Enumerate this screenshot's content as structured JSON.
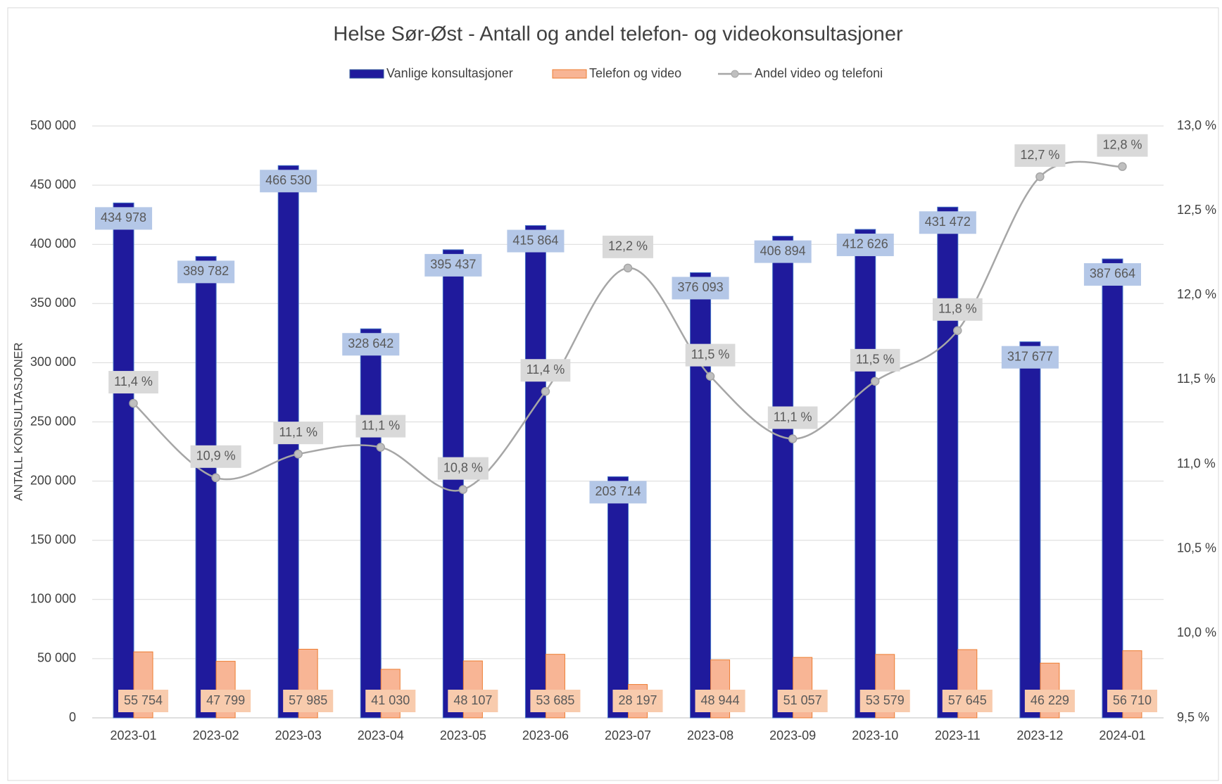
{
  "chart_data": {
    "type": "bar-line",
    "title": "Helse Sør-Øst - Antall og andel telefon- og videokonsultasjoner",
    "y_label": "ANTALL KONSULTASJONER",
    "categories": [
      "2023-01",
      "2023-02",
      "2023-03",
      "2023-04",
      "2023-05",
      "2023-06",
      "2023-07",
      "2023-08",
      "2023-09",
      "2023-10",
      "2023-11",
      "2023-12",
      "2024-01"
    ],
    "series": [
      {
        "name": "Vanlige konsultasjoner",
        "type": "bar",
        "color": "#1f1a9c",
        "label_color": "#b4c7e7",
        "values": [
          434978,
          389782,
          466530,
          328642,
          395437,
          415864,
          203714,
          376093,
          406894,
          412626,
          431472,
          317677,
          387664
        ],
        "value_labels": [
          "434 978",
          "389 782",
          "466 530",
          "328 642",
          "395 437",
          "415 864",
          "203 714",
          "376 093",
          "406 894",
          "412 626",
          "431 472",
          "317 677",
          "387 664"
        ]
      },
      {
        "name": "Telefon og video",
        "type": "bar",
        "color": "#f8b595",
        "label_color": "#f8cbad",
        "values": [
          55754,
          47799,
          57985,
          41030,
          48107,
          53685,
          28197,
          48944,
          51057,
          53579,
          57645,
          46229,
          56710
        ],
        "value_labels": [
          "55 754",
          "47 799",
          "57 985",
          "41 030",
          "48 107",
          "53 685",
          "28 197",
          "48 944",
          "51 057",
          "53 579",
          "57 645",
          "46 229",
          "56 710"
        ]
      },
      {
        "name": "Andel video og telefoni",
        "type": "line",
        "axis": "y2",
        "color": "#a6a6a6",
        "label_color": "#d9d9d9",
        "values": [
          11.36,
          10.92,
          11.06,
          11.1,
          10.85,
          11.43,
          12.16,
          11.52,
          11.15,
          11.49,
          11.79,
          12.7,
          12.76
        ],
        "value_labels": [
          "11,4 %",
          "10,9 %",
          "11,1 %",
          "11,1 %",
          "10,8 %",
          "11,4 %",
          "12,2 %",
          "11,5 %",
          "11,1 %",
          "11,5 %",
          "11,8 %",
          "12,7 %",
          "12,8 %"
        ]
      }
    ],
    "ylim": [
      0,
      500000
    ],
    "yticks": [
      0,
      {
        "value": 50000,
        "label": "50 000"
      },
      {
        "value": 100000,
        "label": "100 000"
      },
      {
        "value": 150000,
        "label": "150 000"
      },
      {
        "value": 200000,
        "label": "200 000"
      },
      {
        "value": 250000,
        "label": "250 000"
      },
      {
        "value": 300000,
        "label": "300 000"
      },
      {
        "value": 350000,
        "label": "350 000"
      },
      {
        "value": 400000,
        "label": "400 000"
      },
      {
        "value": 450000,
        "label": "450 000"
      },
      {
        "value": 500000,
        "label": "500 000"
      }
    ],
    "y2lim": [
      9.5,
      13.0
    ],
    "y2ticks": [
      {
        "value": 9.5,
        "label": "9,5 %"
      },
      {
        "value": 10.0,
        "label": "10,0 %"
      },
      {
        "value": 10.5,
        "label": "10,5 %"
      },
      {
        "value": 11.0,
        "label": "11,0 %"
      },
      {
        "value": 11.5,
        "label": "11,5 %"
      },
      {
        "value": 12.0,
        "label": "12,0 %"
      },
      {
        "value": 12.5,
        "label": "12,5 %"
      },
      {
        "value": 13.0,
        "label": "13,0 %"
      }
    ],
    "grid": true
  }
}
